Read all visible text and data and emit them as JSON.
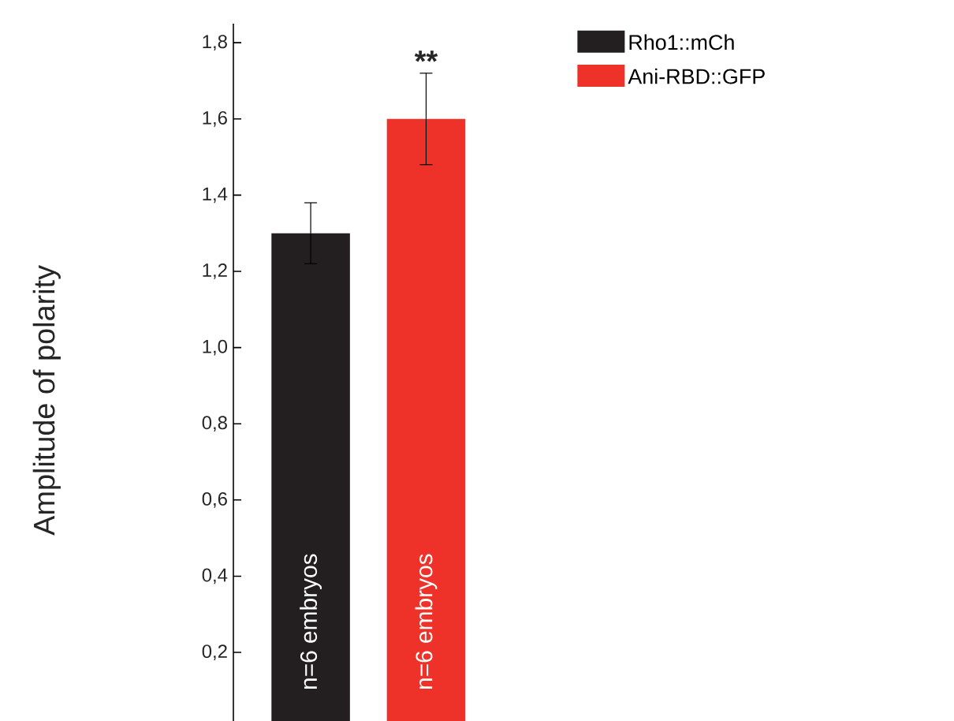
{
  "chart_data": {
    "type": "bar",
    "ylabel": "Amplitude of polarity",
    "categories": [
      null
    ],
    "series": [
      {
        "name": "Rho1::mCh",
        "color": "#231f20",
        "values": [
          1.3
        ],
        "errors": [
          0.08
        ]
      },
      {
        "name": "Ani-RBD::GFP",
        "color": "#ee3229",
        "values": [
          1.6
        ],
        "errors": [
          0.12
        ]
      }
    ],
    "annotations": [
      "**",
      "n=6 embryos",
      "n=6 embryos"
    ],
    "ylim": [
      0.02,
      1.85
    ],
    "yticks": [
      {
        "value": 0.2,
        "label": "0,2"
      },
      {
        "value": 0.4,
        "label": "0,4"
      },
      {
        "value": 0.6,
        "label": "0,6"
      },
      {
        "value": 0.8,
        "label": "0,8"
      },
      {
        "value": 1.0,
        "label": "1,0"
      },
      {
        "value": 1.2,
        "label": "1,2"
      },
      {
        "value": 1.4,
        "label": "1,4"
      },
      {
        "value": 1.6,
        "label": "1,6"
      },
      {
        "value": 1.8,
        "label": "1,8"
      }
    ],
    "tick_labels": "y",
    "grid": false,
    "legend": "top right"
  }
}
